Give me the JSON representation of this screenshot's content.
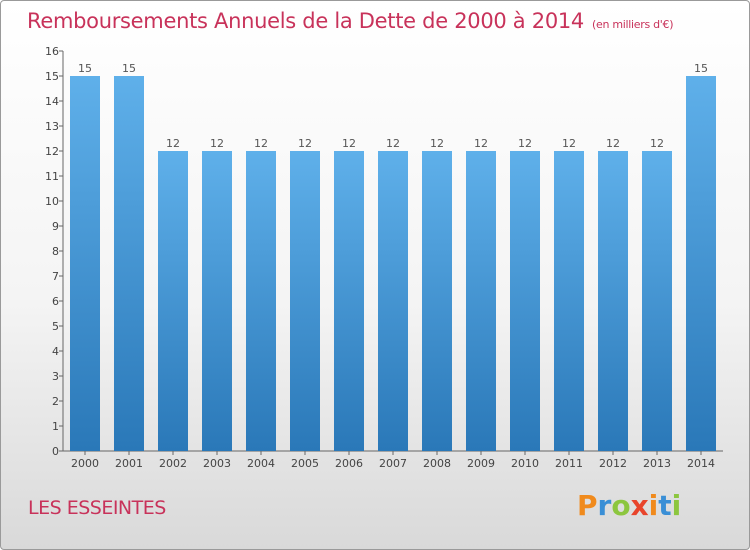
{
  "header": {
    "title": "Remboursements Annuels de la Dette de 2000 à 2014",
    "unit": "(en milliers d'€)"
  },
  "footer": {
    "location": "LES ESSEINTES",
    "logo_letters": [
      {
        "char": "P",
        "color": "#f08a1c"
      },
      {
        "char": "r",
        "color": "#3a8fd6"
      },
      {
        "char": "o",
        "color": "#8cc63f"
      },
      {
        "char": "x",
        "color": "#e8442b"
      },
      {
        "char": "i",
        "color": "#f08a1c"
      },
      {
        "char": "t",
        "color": "#3a8fd6"
      },
      {
        "char": "i",
        "color": "#8cc63f"
      }
    ]
  },
  "chart_data": {
    "type": "bar",
    "categories": [
      "2000",
      "2001",
      "2002",
      "2003",
      "2004",
      "2005",
      "2006",
      "2007",
      "2008",
      "2009",
      "2010",
      "2011",
      "2012",
      "2013",
      "2014"
    ],
    "values": [
      15,
      15,
      12,
      12,
      12,
      12,
      12,
      12,
      12,
      12,
      12,
      12,
      12,
      12,
      15
    ],
    "value_labels": [
      "15",
      "15",
      "12",
      "12",
      "12",
      "12",
      "12",
      "12",
      "12",
      "12",
      "12",
      "12",
      "12",
      "12",
      "15"
    ],
    "ylim": [
      0,
      16
    ],
    "yticks": [
      0,
      1,
      2,
      3,
      4,
      5,
      6,
      7,
      8,
      9,
      10,
      11,
      12,
      13,
      14,
      15,
      16
    ],
    "grid": false,
    "bar_color_top": "#5fb0ea",
    "bar_color_bottom": "#2a78b8"
  }
}
